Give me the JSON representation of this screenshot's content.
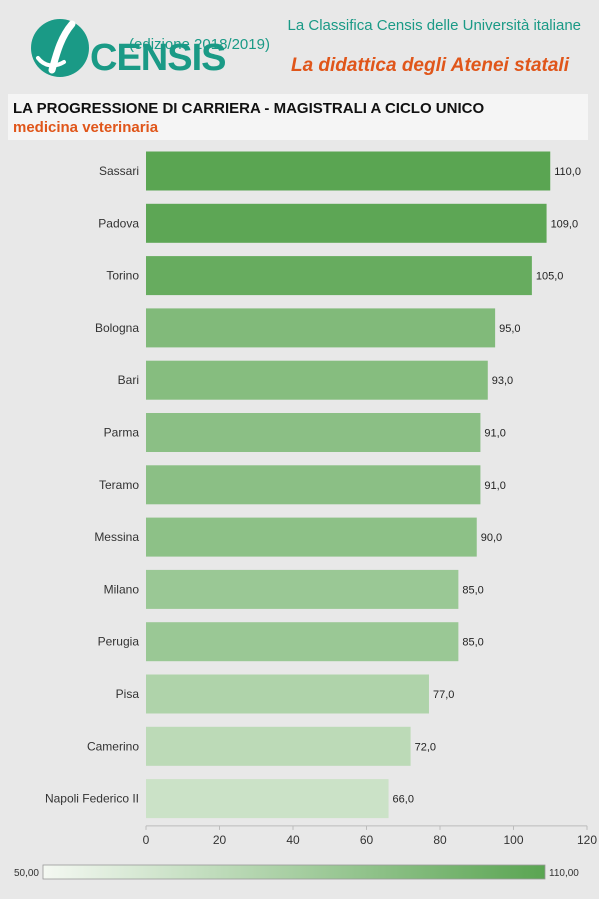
{
  "header": {
    "logo_text": "CENSIS",
    "line1": "La Classifica Censis delle Università italiane",
    "line2": "(edizione 2018/2019)",
    "line3": "La didattica degli Atenei statali"
  },
  "colors": {
    "brand": "#1a9a86",
    "accent": "#e0561a",
    "bar_high": "#5aa552",
    "bar_low": "#f4f8f2"
  },
  "chart_data": {
    "type": "bar",
    "orientation": "horizontal",
    "title": "LA PROGRESSIONE DI CARRIERA - MAGISTRALI A CICLO UNICO",
    "subtitle": "medicina veterinaria",
    "categories": [
      "Sassari",
      "Padova",
      "Torino",
      "Bologna",
      "Bari",
      "Parma",
      "Teramo",
      "Messina",
      "Milano",
      "Perugia",
      "Pisa",
      "Camerino",
      "Napoli Federico II"
    ],
    "values": [
      110,
      109,
      105,
      95,
      93,
      91,
      91,
      90,
      85,
      85,
      77,
      72,
      66
    ],
    "value_labels": [
      "110,0",
      "109,0",
      "105,0",
      "95,0",
      "93,0",
      "91,0",
      "91,0",
      "90,0",
      "85,0",
      "85,0",
      "77,0",
      "72,0",
      "66,0"
    ],
    "xlim": [
      0,
      120
    ],
    "x_ticks": [
      0,
      20,
      40,
      60,
      80,
      100,
      120
    ],
    "x_tick_labels": [
      "0",
      "20",
      "40",
      "60",
      "80",
      "100",
      "120"
    ],
    "grid": false,
    "legend": {
      "type": "gradient",
      "placement": "bottom",
      "min": 50,
      "max": 110,
      "min_label": "50,00",
      "max_label": "110,00"
    }
  }
}
